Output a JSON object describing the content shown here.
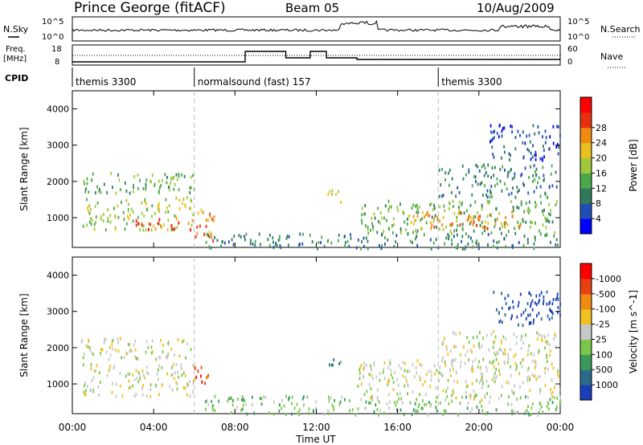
{
  "header": {
    "station": "Prince George (fitACF)",
    "beam": "Beam 05",
    "date": "10/Aug/2009"
  },
  "panel_labels": {
    "nsky": "N.Sky",
    "freq_line1": "Freq.",
    "freq_line2": "[MHz]",
    "cpid": "CPID",
    "nsearch": "N.Search",
    "nave": "Nave"
  },
  "noise_axis": {
    "left_top": "10^5",
    "left_bottom": "10^0",
    "right_top": "10^5",
    "right_bottom": "10^0"
  },
  "freq_axis": {
    "left_top": "18",
    "left_bottom": "8",
    "right_top": "60",
    "right_bottom": "0"
  },
  "cpid_segments": [
    {
      "label": "themis 3300",
      "start": 0,
      "end": 6
    },
    {
      "label": "normalsound (fast) 157",
      "start": 6,
      "end": 18
    },
    {
      "label": "themis 3300",
      "start": 18,
      "end": 24
    }
  ],
  "x_ticks": [
    "00:00",
    "04:00",
    "08:00",
    "12:00",
    "16:00",
    "20:00",
    "00:00"
  ],
  "x_label": "Time UT",
  "chart_data": [
    {
      "type": "heatmap",
      "ylabel": "Slant Range [km]",
      "y_ticks": [
        1000,
        2000,
        3000,
        4000
      ],
      "xlim_hours": [
        0,
        24
      ],
      "ylim_km": [
        180,
        4500
      ],
      "colorbar": {
        "label": "Power [dB]",
        "ticks": [
          "4",
          "8",
          "12",
          "16",
          "20",
          "24",
          "28"
        ],
        "colors": [
          "#0000ff",
          "#1f4fb4",
          "#2f7a5a",
          "#4aa84a",
          "#9fc83a",
          "#e8c020",
          "#f08a10",
          "#e83010",
          "#ff0000"
        ]
      },
      "regions": [
        {
          "t": [
            0.4,
            6.0
          ],
          "r": [
            1700,
            2300
          ],
          "level": 3
        },
        {
          "t": [
            0.5,
            6.0
          ],
          "r": [
            700,
            1600
          ],
          "level": 4
        },
        {
          "t": [
            3.0,
            6.0
          ],
          "r": [
            700,
            1000
          ],
          "level": 7
        },
        {
          "t": [
            6.0,
            7.1
          ],
          "r": [
            400,
            1300
          ],
          "level": 6
        },
        {
          "t": [
            6.5,
            24.0
          ],
          "r": [
            180,
            600
          ],
          "level": 2
        },
        {
          "t": [
            12.5,
            13.3
          ],
          "r": [
            1400,
            1800
          ],
          "level": 4
        },
        {
          "t": [
            14.0,
            24.0
          ],
          "r": [
            600,
            1500
          ],
          "level": 3
        },
        {
          "t": [
            16.5,
            22.0
          ],
          "r": [
            700,
            1200
          ],
          "level": 6
        },
        {
          "t": [
            18.0,
            23.8
          ],
          "r": [
            1600,
            2500
          ],
          "level": 2
        },
        {
          "t": [
            20.5,
            24.0
          ],
          "r": [
            2600,
            3600
          ],
          "level": 1
        }
      ]
    },
    {
      "type": "heatmap",
      "ylabel": "Slant Range [km]",
      "y_ticks": [
        1000,
        2000,
        3000,
        4000
      ],
      "xlim_hours": [
        0,
        24
      ],
      "ylim_km": [
        180,
        4500
      ],
      "colorbar": {
        "label": "Velocity [m s^-1]",
        "ticks": [
          "1000",
          "500",
          "100",
          "25",
          "-25",
          "-100",
          "-500",
          "-1000"
        ],
        "colors": [
          "#1a3fb8",
          "#2a6a8a",
          "#3a9a5a",
          "#7ac84a",
          "#c8c8c8",
          "#f0c020",
          "#f08a10",
          "#e84010",
          "#ff0000"
        ]
      },
      "regions": [
        {
          "t": [
            0.4,
            6.0
          ],
          "r": [
            1700,
            2300
          ],
          "level": 4
        },
        {
          "t": [
            0.5,
            6.0
          ],
          "r": [
            700,
            1600
          ],
          "level": 4
        },
        {
          "t": [
            6.0,
            6.9
          ],
          "r": [
            1000,
            1500
          ],
          "level": 7
        },
        {
          "t": [
            6.5,
            24.0
          ],
          "r": [
            180,
            700
          ],
          "level": 3
        },
        {
          "t": [
            12.5,
            13.2
          ],
          "r": [
            1400,
            1800
          ],
          "level": 2
        },
        {
          "t": [
            14.0,
            24.0
          ],
          "r": [
            600,
            1700
          ],
          "level": 4
        },
        {
          "t": [
            18.0,
            23.8
          ],
          "r": [
            1600,
            2500
          ],
          "level": 4
        },
        {
          "t": [
            20.5,
            24.0
          ],
          "r": [
            2600,
            3600
          ],
          "level": 0
        }
      ]
    }
  ]
}
